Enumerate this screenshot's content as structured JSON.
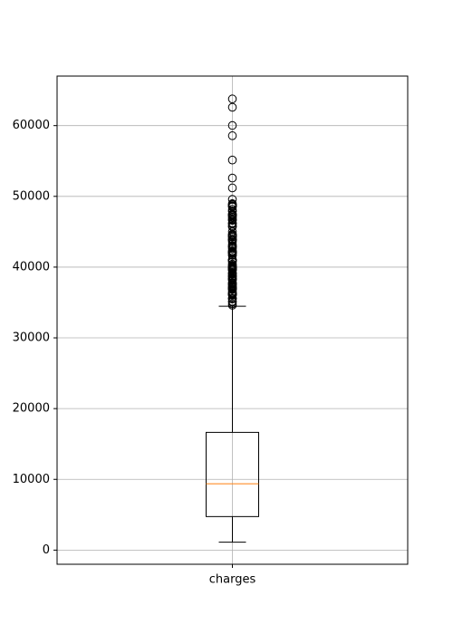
{
  "chart_data": {
    "type": "boxplot",
    "title": "",
    "xlabel": "",
    "ylabel": "",
    "categories": [
      "charges"
    ],
    "ylim": [
      -2000,
      67000
    ],
    "yticks": [
      0,
      10000,
      20000,
      30000,
      40000,
      50000,
      60000
    ],
    "ytick_labels": [
      "0",
      "10000",
      "20000",
      "30000",
      "40000",
      "50000",
      "60000"
    ],
    "grid": true,
    "box": {
      "whisker_low": 1122,
      "q1": 4740,
      "median": 9382,
      "q3": 16640,
      "whisker_high": 34472
    },
    "outliers": [
      34617,
      34806,
      35069,
      35160,
      35491,
      35585,
      35595,
      36021,
      36085,
      36124,
      36149,
      36189,
      36197,
      36219,
      36307,
      36398,
      36580,
      36838,
      36898,
      36910,
      36950,
      37079,
      37133,
      37165,
      37270,
      37465,
      37484,
      37607,
      37701,
      37742,
      37829,
      38126,
      38245,
      38282,
      38344,
      38415,
      38511,
      38709,
      38711,
      38746,
      38792,
      38998,
      39047,
      39125,
      39241,
      39556,
      39597,
      39611,
      39725,
      39727,
      39775,
      39837,
      39871,
      39983,
      40003,
      40103,
      40182,
      40273,
      40419,
      40720,
      40904,
      40932,
      40941,
      40974,
      41034,
      41097,
      41661,
      41676,
      41919,
      41949,
      41999,
      42111,
      42112,
      42124,
      42211,
      42303,
      42560,
      42760,
      42856,
      42969,
      42983,
      43254,
      43578,
      43753,
      43813,
      43896,
      43921,
      43943,
      44202,
      44260,
      44400,
      44423,
      44501,
      44585,
      44641,
      45008,
      45702,
      45710,
      45863,
      46113,
      46200,
      46255,
      46599,
      46661,
      46719,
      46889,
      47055,
      47269,
      47291,
      47305,
      47403,
      47462,
      47497,
      47896,
      47928,
      48173,
      48517,
      48549,
      48673,
      48675,
      48824,
      48885,
      48970,
      49577,
      51195,
      52591,
      55135,
      58571,
      60021,
      62593,
      63770
    ],
    "colors": {
      "box": "#000000",
      "median": "#ff7f0e",
      "grid": "#b0b0b0",
      "outlier_edge": "#000000"
    }
  }
}
